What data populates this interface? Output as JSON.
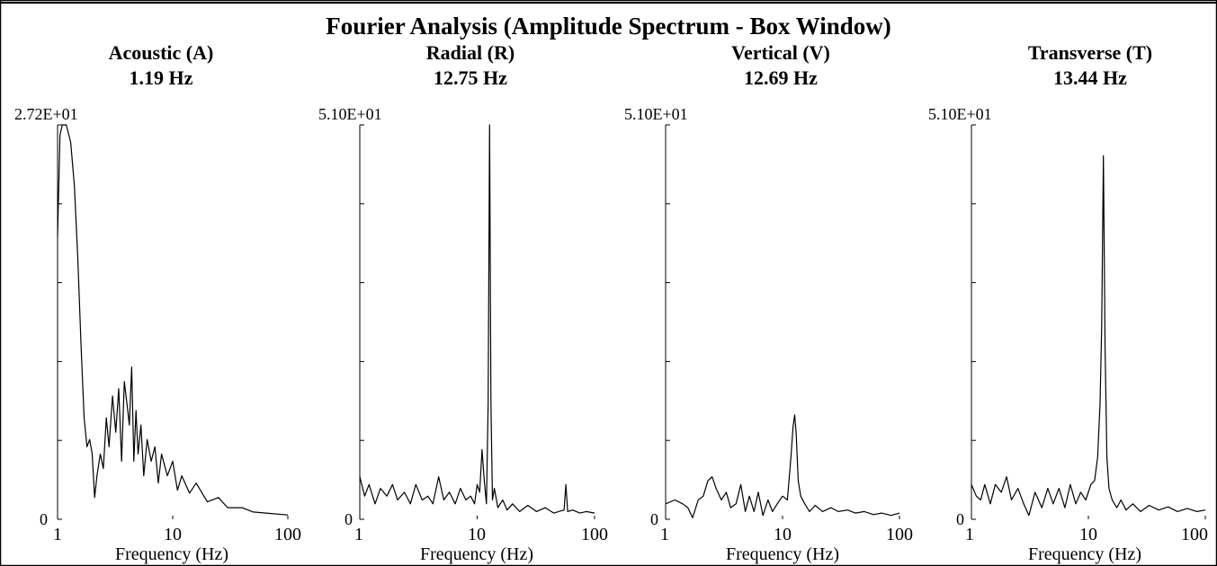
{
  "title": "Fourier Analysis (Amplitude Spectrum - Box Window)",
  "colors": {
    "line": "#000000",
    "background": "#ffffff"
  },
  "chart_data": [
    {
      "type": "line",
      "title": "Acoustic (A)",
      "subtitle": "1.19 Hz",
      "xlabel": "Frequency (Hz)",
      "ylabel": "",
      "x_scale": "log",
      "xlim": [
        1,
        100
      ],
      "ylim": [
        0,
        27.2
      ],
      "y_max_label": "2.72E+01",
      "y_min_label": "0",
      "x_tick_labels": [
        "1",
        "10",
        "100"
      ],
      "grid": false,
      "series": [
        {
          "x": [
            1.0,
            1.05,
            1.1,
            1.19,
            1.3,
            1.4,
            1.5,
            1.6,
            1.7,
            1.8,
            1.9,
            2.0,
            2.1,
            2.2,
            2.35,
            2.5,
            2.65,
            2.8,
            3.0,
            3.2,
            3.4,
            3.6,
            3.8,
            4.0,
            4.2,
            4.4,
            4.6,
            4.8,
            5.0,
            5.3,
            5.6,
            6.0,
            6.5,
            7.0,
            7.5,
            8.0,
            9.0,
            10.0,
            11.0,
            12.0,
            14.0,
            16.0,
            20.0,
            25.0,
            30.0,
            40.0,
            50.0,
            70.0,
            100.0
          ],
          "y": [
            19.5,
            26.5,
            27.2,
            27.2,
            26.0,
            23.0,
            18.0,
            12.0,
            7.0,
            5.0,
            5.5,
            4.5,
            1.5,
            3.0,
            4.5,
            3.5,
            7.0,
            5.0,
            8.5,
            6.0,
            9.0,
            4.0,
            9.5,
            8.0,
            6.5,
            10.5,
            4.0,
            7.5,
            4.5,
            6.5,
            3.0,
            5.5,
            4.0,
            5.0,
            2.5,
            4.5,
            3.0,
            4.0,
            2.0,
            3.0,
            1.8,
            2.5,
            1.2,
            1.5,
            0.8,
            0.8,
            0.5,
            0.4,
            0.3
          ]
        }
      ]
    },
    {
      "type": "line",
      "title": "Radial (R)",
      "subtitle": "12.75 Hz",
      "xlabel": "Frequency (Hz)",
      "ylabel": "",
      "x_scale": "log",
      "xlim": [
        1,
        100
      ],
      "ylim": [
        0,
        51.0
      ],
      "y_max_label": "5.10E+01",
      "y_min_label": "0",
      "x_tick_labels": [
        "1",
        "10",
        "100"
      ],
      "grid": false,
      "series": [
        {
          "x": [
            1.0,
            1.1,
            1.2,
            1.35,
            1.5,
            1.7,
            1.9,
            2.1,
            2.4,
            2.7,
            3.0,
            3.4,
            3.8,
            4.2,
            4.7,
            5.2,
            5.8,
            6.5,
            7.2,
            8.0,
            8.8,
            9.5,
            10.0,
            10.5,
            11.0,
            11.5,
            12.0,
            12.4,
            12.75,
            13.1,
            13.5,
            14.0,
            15.0,
            16.5,
            18.0,
            20.0,
            23.0,
            27.0,
            32.0,
            38.0,
            45.0,
            55.0,
            57.0,
            59.0,
            65.0,
            75.0,
            85.0,
            100.0
          ],
          "y": [
            5.5,
            3.0,
            4.5,
            2.0,
            4.0,
            3.0,
            4.5,
            2.5,
            3.5,
            2.0,
            4.5,
            2.5,
            3.0,
            2.0,
            5.5,
            2.5,
            3.5,
            2.0,
            4.0,
            2.5,
            3.0,
            2.0,
            4.5,
            3.5,
            9.0,
            5.0,
            2.0,
            15.0,
            51.0,
            15.0,
            2.5,
            4.0,
            1.5,
            2.5,
            1.2,
            2.0,
            1.0,
            1.8,
            1.0,
            1.5,
            0.8,
            1.2,
            4.5,
            1.0,
            1.2,
            0.8,
            1.0,
            0.8
          ]
        }
      ]
    },
    {
      "type": "line",
      "title": "Vertical (V)",
      "subtitle": "12.69 Hz",
      "xlabel": "Frequency (Hz)",
      "ylabel": "",
      "x_scale": "log",
      "xlim": [
        1,
        100
      ],
      "ylim": [
        0,
        51.0
      ],
      "y_max_label": "5.10E+01",
      "y_min_label": "0",
      "x_tick_labels": [
        "1",
        "10",
        "100"
      ],
      "grid": false,
      "series": [
        {
          "x": [
            1.0,
            1.2,
            1.4,
            1.55,
            1.7,
            1.9,
            2.1,
            2.3,
            2.5,
            2.7,
            3.0,
            3.3,
            3.6,
            4.0,
            4.4,
            4.8,
            5.2,
            5.7,
            6.2,
            6.8,
            7.5,
            8.2,
            9.0,
            10.0,
            11.0,
            11.8,
            12.3,
            12.69,
            13.1,
            13.6,
            14.3,
            15.5,
            17.0,
            19.0,
            22.0,
            26.0,
            30.0,
            36.0,
            42.0,
            50.0,
            60.0,
            70.0,
            85.0,
            100.0
          ],
          "y": [
            2.0,
            2.5,
            2.0,
            1.5,
            0.2,
            2.5,
            3.0,
            5.0,
            5.5,
            4.0,
            2.5,
            3.5,
            1.5,
            2.0,
            4.5,
            1.0,
            3.0,
            1.0,
            3.5,
            0.5,
            2.5,
            1.0,
            2.0,
            3.0,
            2.5,
            8.0,
            12.0,
            13.5,
            11.0,
            5.0,
            3.0,
            2.0,
            1.0,
            1.8,
            1.0,
            1.5,
            1.0,
            1.2,
            0.8,
            1.0,
            0.6,
            0.8,
            0.5,
            0.8
          ]
        }
      ]
    },
    {
      "type": "line",
      "title": "Transverse (T)",
      "subtitle": "13.44 Hz",
      "xlabel": "Frequency (Hz)",
      "ylabel": "",
      "x_scale": "log",
      "xlim": [
        1,
        100
      ],
      "ylim": [
        0,
        51.0
      ],
      "y_max_label": "5.10E+01",
      "y_min_label": "0",
      "x_tick_labels": [
        "1",
        "10",
        "100"
      ],
      "grid": false,
      "series": [
        {
          "x": [
            1.0,
            1.1,
            1.2,
            1.3,
            1.45,
            1.6,
            1.8,
            2.0,
            2.2,
            2.5,
            2.8,
            3.1,
            3.5,
            4.0,
            4.5,
            5.0,
            5.6,
            6.3,
            7.0,
            7.8,
            8.6,
            9.5,
            10.5,
            11.3,
            12.0,
            12.6,
            13.0,
            13.44,
            13.9,
            14.4,
            15.0,
            16.0,
            17.5,
            19.0,
            21.0,
            24.0,
            28.0,
            33.0,
            40.0,
            48.0,
            58.0,
            70.0,
            85.0,
            100.0
          ],
          "y": [
            4.5,
            3.0,
            2.5,
            4.5,
            2.0,
            4.5,
            3.5,
            5.5,
            2.5,
            4.0,
            2.0,
            0.5,
            3.5,
            1.5,
            4.0,
            2.0,
            4.0,
            1.5,
            4.5,
            2.0,
            3.5,
            2.5,
            4.5,
            5.0,
            8.0,
            15.0,
            25.0,
            47.0,
            22.0,
            8.0,
            4.0,
            2.5,
            1.5,
            2.5,
            1.2,
            2.0,
            1.0,
            1.8,
            1.2,
            1.6,
            1.0,
            1.4,
            1.0,
            1.2
          ]
        }
      ]
    }
  ]
}
